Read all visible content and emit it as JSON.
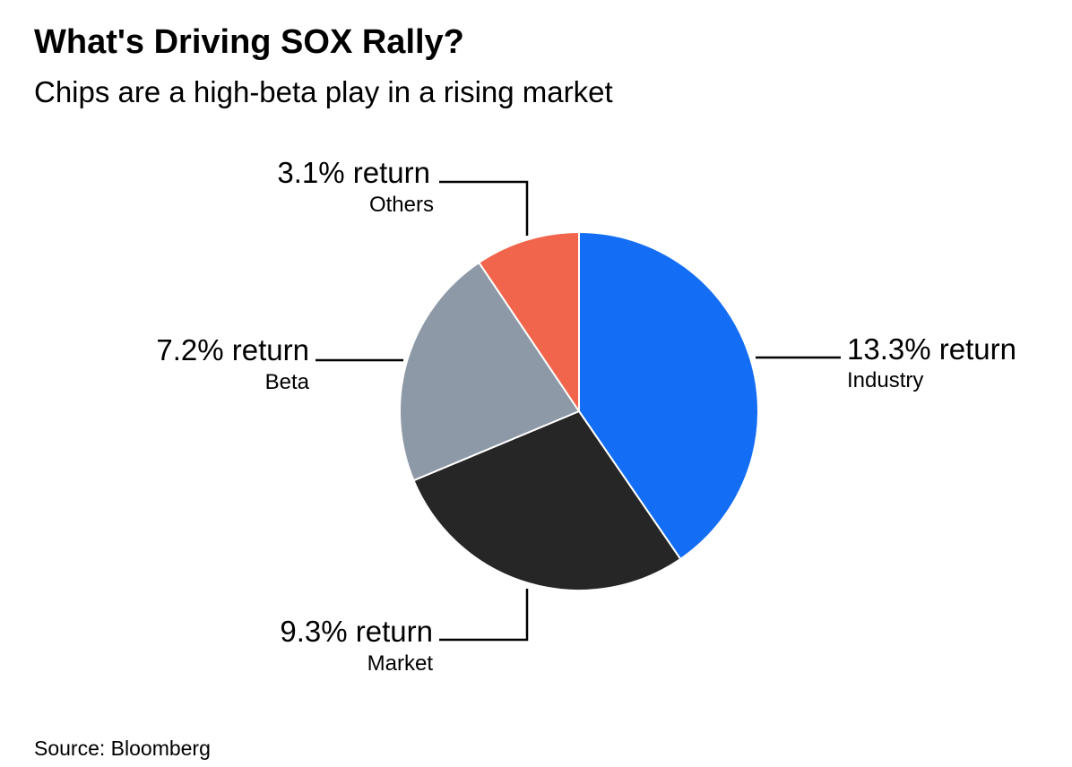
{
  "title": "What's Driving SOX Rally?",
  "subtitle": "Chips are a high-beta play in a rising market",
  "source": "Source: Bloomberg",
  "chart_data": {
    "type": "pie",
    "slices": [
      {
        "name": "Industry",
        "value": 13.3,
        "label": "13.3% return",
        "color": "#146ef5"
      },
      {
        "name": "Market",
        "value": 9.3,
        "label": "9.3% return",
        "color": "#262626"
      },
      {
        "name": "Beta",
        "value": 7.2,
        "label": "7.2% return",
        "color": "#8e99a7"
      },
      {
        "name": "Others",
        "value": 3.1,
        "label": "3.1% return",
        "color": "#f2654d"
      }
    ],
    "start_angle": "12 o'clock",
    "direction": "clockwise",
    "legend": "none (direct labels)"
  }
}
